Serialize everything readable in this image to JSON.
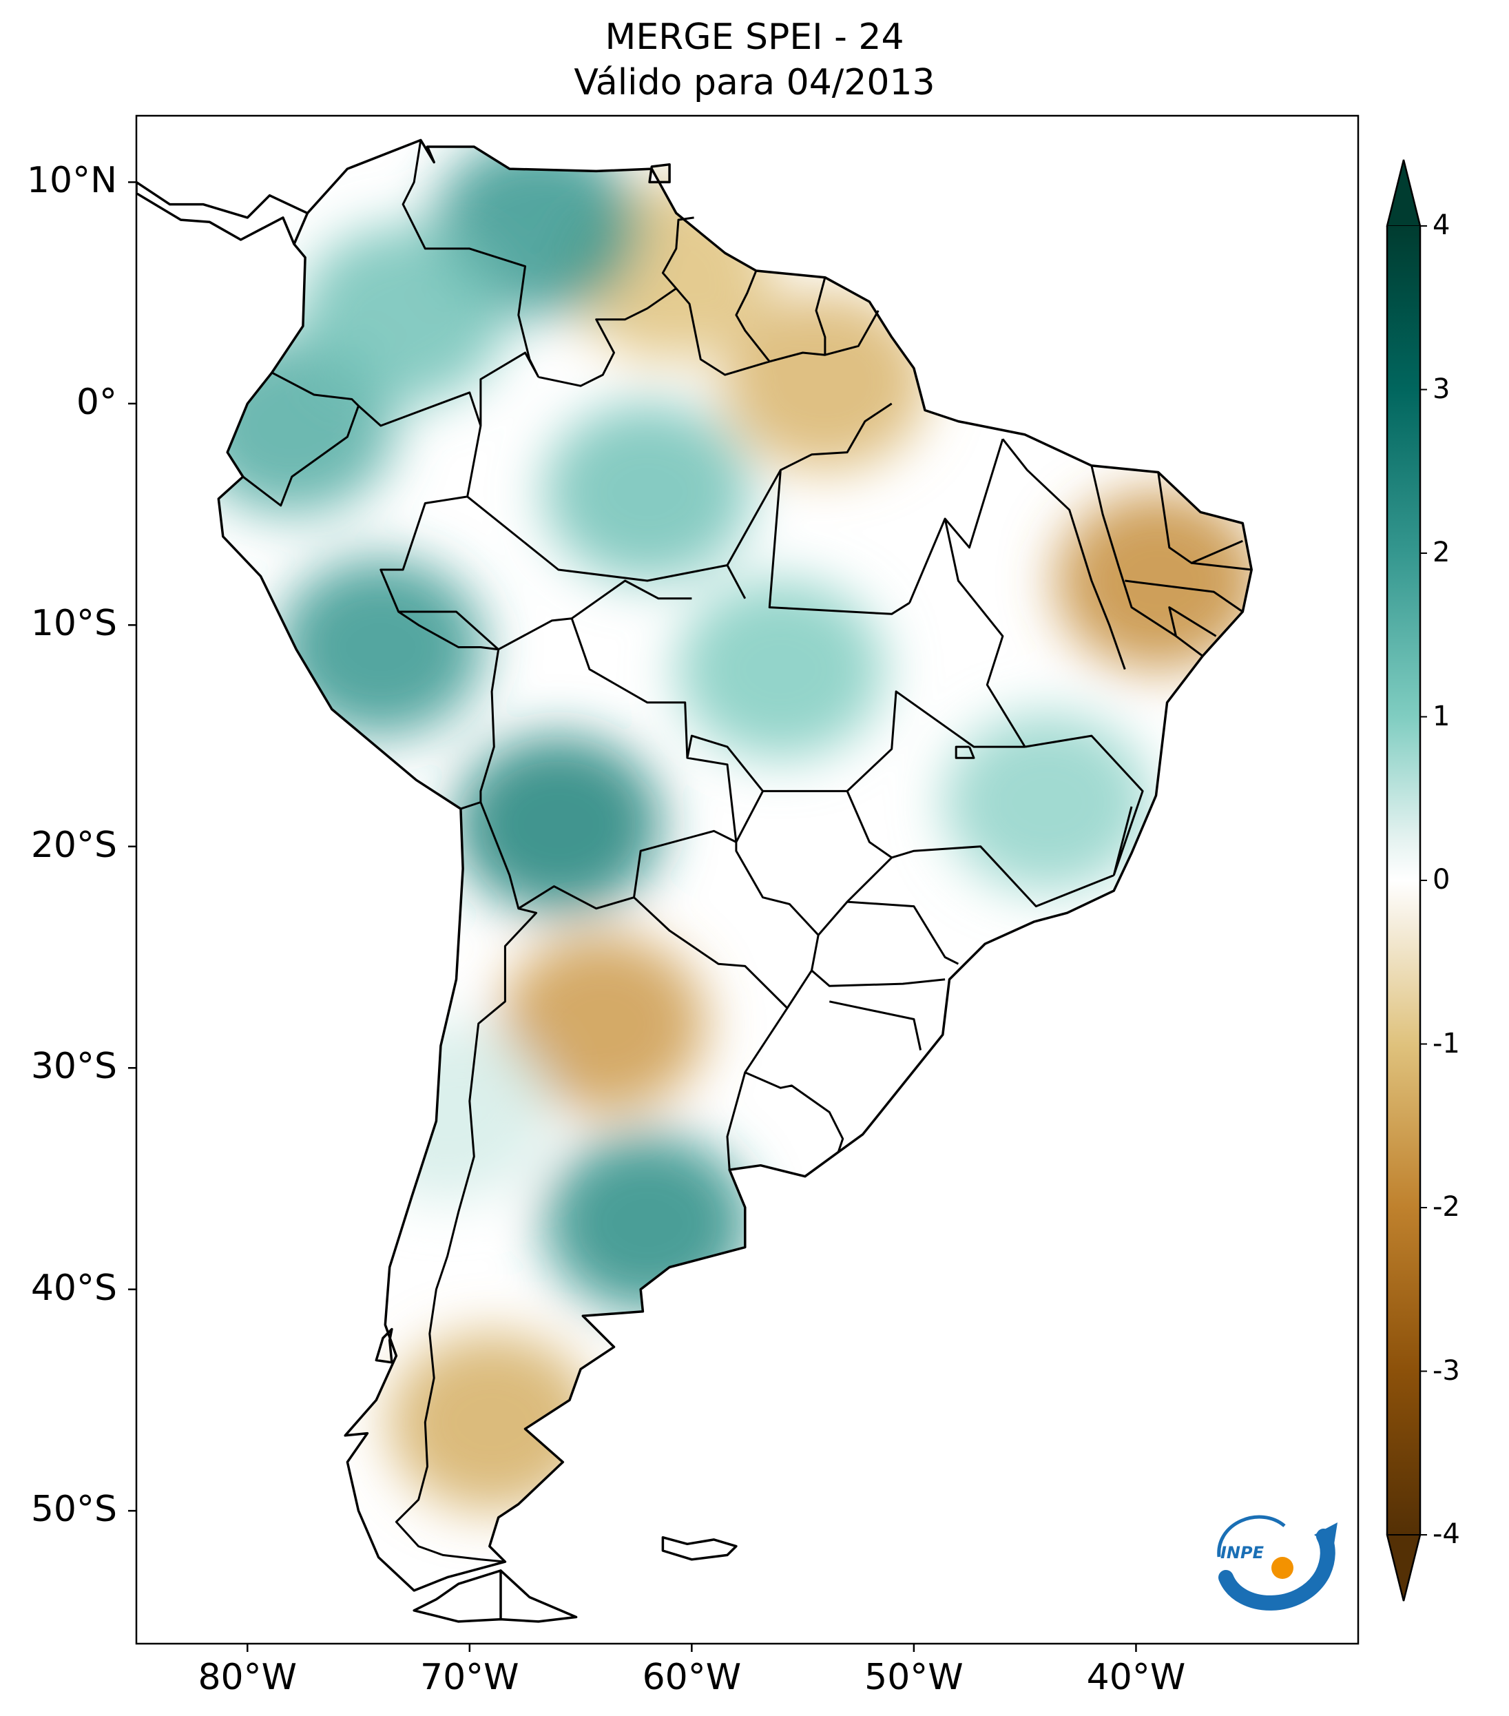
{
  "title": {
    "line1": "MERGE   SPEI - 24",
    "line2": "Válido para 04/2013"
  },
  "map": {
    "projection": "PlateCarree",
    "extent_lon": [
      -85,
      -30
    ],
    "extent_lat": [
      -56,
      13
    ],
    "lat_ticks": [
      {
        "value": 10,
        "label": "10°N"
      },
      {
        "value": 0,
        "label": "0°"
      },
      {
        "value": -10,
        "label": "10°S"
      },
      {
        "value": -20,
        "label": "20°S"
      },
      {
        "value": -30,
        "label": "30°S"
      },
      {
        "value": -40,
        "label": "40°S"
      },
      {
        "value": -50,
        "label": "50°S"
      }
    ],
    "lon_ticks": [
      {
        "value": -80,
        "label": "80°W"
      },
      {
        "value": -70,
        "label": "70°W"
      },
      {
        "value": -60,
        "label": "60°W"
      },
      {
        "value": -50,
        "label": "50°W"
      },
      {
        "value": -40,
        "label": "40°W"
      }
    ],
    "colormap": "BrBG",
    "field_regions": [
      {
        "name": "northeast-brazil",
        "lon": -39,
        "lat": -8,
        "value": -1.8
      },
      {
        "name": "central-argentina",
        "lon": -64,
        "lat": -28,
        "value": -1.6
      },
      {
        "name": "patagonia",
        "lon": -69,
        "lat": -46,
        "value": -1.3
      },
      {
        "name": "guianas-para",
        "lon": -54,
        "lat": 1,
        "value": -1.2
      },
      {
        "name": "venezuela-east",
        "lon": -61,
        "lat": 6,
        "value": -1.0
      },
      {
        "name": "bolivia-east-andes",
        "lon": -66,
        "lat": -19,
        "value": 2.4
      },
      {
        "name": "peru",
        "lon": -74,
        "lat": -11,
        "value": 2.0
      },
      {
        "name": "buenos-aires-south",
        "lon": -62,
        "lat": -37,
        "value": 2.2
      },
      {
        "name": "venezuela-north",
        "lon": -67,
        "lat": 8,
        "value": 2.0
      },
      {
        "name": "ecuador",
        "lon": -78,
        "lat": -1,
        "value": 1.6
      },
      {
        "name": "amazonas",
        "lon": -62,
        "lat": -4,
        "value": 1.2
      },
      {
        "name": "mato-grosso",
        "lon": -56,
        "lat": -12,
        "value": 1.0
      },
      {
        "name": "minas-gerais",
        "lon": -44,
        "lat": -18,
        "value": 0.9
      },
      {
        "name": "colombia",
        "lon": -73,
        "lat": 4,
        "value": 1.2
      },
      {
        "name": "chile-central",
        "lon": -71,
        "lat": -32,
        "value": 0.5
      }
    ]
  },
  "colorbar": {
    "min": -4,
    "max": 4,
    "extend": "both",
    "tick_labels": [
      "4",
      "3",
      "2",
      "1",
      "0",
      "-1",
      "-2",
      "-3",
      "-4"
    ]
  },
  "logo": {
    "text": "INPE"
  }
}
